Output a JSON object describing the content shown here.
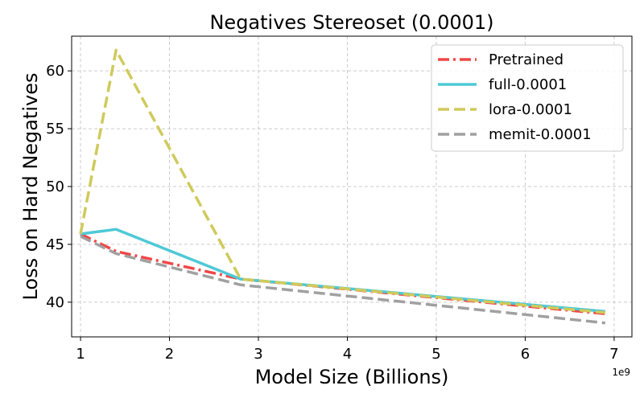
{
  "chart_data": {
    "type": "line",
    "title": "Negatives Stereoset (0.0001)",
    "xlabel": "Model Size (Billions)",
    "ylabel": "Loss on Hard Negatives",
    "x_offset_label": "1e9",
    "xlim": [
      0.9,
      7.2
    ],
    "ylim": [
      37.0,
      63.0
    ],
    "xticks": [
      1,
      2,
      3,
      4,
      5,
      6,
      7
    ],
    "yticks": [
      40,
      45,
      50,
      55,
      60
    ],
    "x": [
      1.0,
      1.4,
      2.8,
      6.9
    ],
    "grid": true,
    "legend_position": "top-right",
    "series": [
      {
        "name": "Pretrained",
        "values": [
          45.9,
          44.4,
          42.0,
          39.0
        ],
        "color": "#f04747",
        "dash": "dashdot"
      },
      {
        "name": "full-0.0001",
        "values": [
          45.9,
          46.3,
          42.0,
          39.2
        ],
        "color": "#4ec9d6",
        "dash": "solid"
      },
      {
        "name": "lora-0.0001",
        "values": [
          45.9,
          61.8,
          42.0,
          39.1
        ],
        "color": "#cfca5c",
        "dash": "dashed"
      },
      {
        "name": "memit-0.0001",
        "values": [
          45.7,
          44.2,
          41.5,
          38.2
        ],
        "color": "#a0a0a0",
        "dash": "dashed"
      }
    ]
  }
}
